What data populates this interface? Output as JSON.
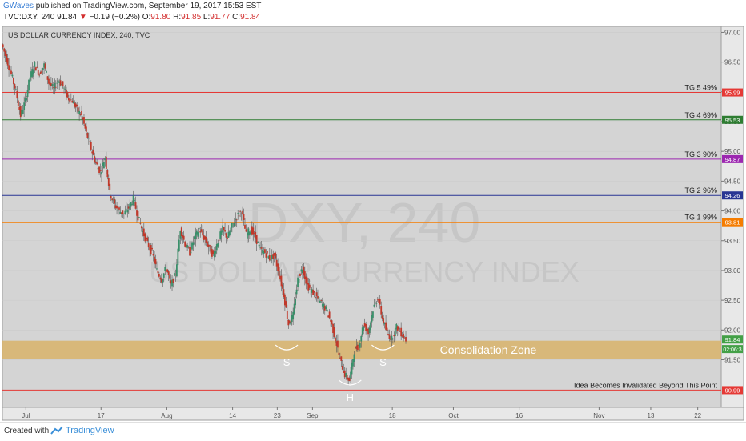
{
  "header": {
    "author": "GWaves",
    "published": "published on TradingView.com, September 19, 2017 15:53 EST",
    "symbol": "TVC:DXY, 240",
    "last": "91.84",
    "change_arrow": "▼",
    "change": "−0.19 (−0.2%)",
    "o_label": "O:",
    "o_val": "91.80",
    "h_label": "H:",
    "h_val": "91.85",
    "l_label": "L:",
    "l_val": "91.77",
    "c_label": "C:",
    "c_val": "91.84"
  },
  "footer": {
    "created_with": "Created with",
    "brand": "TradingView"
  },
  "chart_data": {
    "type": "candlestick",
    "title": "US DOLLAR CURRENCY INDEX, 240, TVC",
    "watermark_line1": "DXY, 240",
    "watermark_line2": "US DOLLAR CURRENCY INDEX",
    "ylim": [
      90.7,
      97.1
    ],
    "y_ticks": [
      "97.00",
      "96.50",
      "96.00",
      "95.50",
      "95.00",
      "94.50",
      "94.00",
      "93.50",
      "93.00",
      "92.50",
      "92.00",
      "91.50"
    ],
    "x_ticks": [
      {
        "label": "Jul",
        "t": 5
      },
      {
        "label": "17",
        "t": 21
      },
      {
        "label": "Aug",
        "t": 35
      },
      {
        "label": "14",
        "t": 49
      },
      {
        "label": "23",
        "t": 58.5
      },
      {
        "label": "Sep",
        "t": 66
      },
      {
        "label": "18",
        "t": 83
      },
      {
        "label": "Oct",
        "t": 96
      },
      {
        "label": "16",
        "t": 110
      },
      {
        "label": "Nov",
        "t": 127
      },
      {
        "label": "13",
        "t": 138
      },
      {
        "label": "22",
        "t": 148
      }
    ],
    "horizontal_levels": [
      {
        "label": "TG 5 49%",
        "value": 95.99,
        "tag": "95.99",
        "color": "#e53935"
      },
      {
        "label": "TG 4 69%",
        "value": 95.53,
        "tag": "95.53",
        "color": "#2e7d32"
      },
      {
        "label": "TG 3 90%",
        "value": 94.87,
        "tag": "94.87",
        "color": "#9c27b0"
      },
      {
        "label": "TG 2 96%",
        "value": 94.26,
        "tag": "94.26",
        "color": "#283593"
      },
      {
        "label": "TG 1 99%",
        "value": 93.81,
        "tag": "93.81",
        "color": "#f57c00"
      },
      {
        "label": "Idea Becomes Invalidated Beyond This Point",
        "value": 90.99,
        "tag": "90.99",
        "color": "#e53935"
      }
    ],
    "last_price": {
      "tag": "91.84",
      "value": 91.84,
      "color": "#43a047"
    },
    "countdown": {
      "text": "02:06:3",
      "value": 91.68
    },
    "consolidation_zone": {
      "label": "Consolidation Zone",
      "low": 91.52,
      "high": 91.82,
      "color": "#d8b36a"
    },
    "pattern_labels": [
      {
        "text": "S",
        "t": 60.5,
        "v": 91.64
      },
      {
        "text": "H",
        "t": 74,
        "v": 91.05
      },
      {
        "text": "S",
        "t": 81,
        "v": 91.64
      }
    ],
    "price_path": [
      [
        0,
        96.8
      ],
      [
        1,
        96.55
      ],
      [
        2,
        96.3
      ],
      [
        3,
        96.0
      ],
      [
        4,
        95.6
      ],
      [
        5,
        95.85
      ],
      [
        6,
        96.25
      ],
      [
        7,
        96.45
      ],
      [
        8,
        96.3
      ],
      [
        9,
        96.45
      ],
      [
        10,
        96.15
      ],
      [
        11,
        96.05
      ],
      [
        12,
        96.2
      ],
      [
        13,
        96.1
      ],
      [
        14,
        95.9
      ],
      [
        15,
        95.85
      ],
      [
        16,
        95.7
      ],
      [
        17,
        95.6
      ],
      [
        18,
        95.3
      ],
      [
        19,
        95.05
      ],
      [
        20,
        94.8
      ],
      [
        21,
        94.65
      ],
      [
        22,
        94.9
      ],
      [
        23,
        94.3
      ],
      [
        24,
        94.1
      ],
      [
        25,
        94.0
      ],
      [
        26,
        93.95
      ],
      [
        27,
        94.05
      ],
      [
        28,
        94.2
      ],
      [
        29,
        93.9
      ],
      [
        30,
        93.65
      ],
      [
        31,
        93.45
      ],
      [
        32,
        93.3
      ],
      [
        33,
        93.0
      ],
      [
        34,
        92.85
      ],
      [
        35,
        93.05
      ],
      [
        36,
        92.75
      ],
      [
        37,
        92.95
      ],
      [
        38,
        93.7
      ],
      [
        39,
        93.45
      ],
      [
        40,
        93.3
      ],
      [
        41,
        93.55
      ],
      [
        42,
        93.7
      ],
      [
        43,
        93.55
      ],
      [
        44,
        93.4
      ],
      [
        45,
        93.25
      ],
      [
        46,
        93.5
      ],
      [
        47,
        93.7
      ],
      [
        48,
        93.55
      ],
      [
        49,
        93.75
      ],
      [
        50,
        93.9
      ],
      [
        51,
        94.0
      ],
      [
        52,
        93.6
      ],
      [
        53,
        93.7
      ],
      [
        54,
        93.55
      ],
      [
        55,
        93.35
      ],
      [
        56,
        93.3
      ],
      [
        57,
        93.2
      ],
      [
        58,
        93.25
      ],
      [
        59,
        92.95
      ],
      [
        60,
        92.6
      ],
      [
        61,
        92.1
      ],
      [
        62,
        92.25
      ],
      [
        63,
        92.85
      ],
      [
        64,
        93.05
      ],
      [
        65,
        92.75
      ],
      [
        66,
        92.65
      ],
      [
        67,
        92.55
      ],
      [
        68,
        92.45
      ],
      [
        69,
        92.35
      ],
      [
        70,
        92.15
      ],
      [
        71,
        91.85
      ],
      [
        72,
        91.5
      ],
      [
        73,
        91.25
      ],
      [
        74,
        91.15
      ],
      [
        75,
        91.65
      ],
      [
        76,
        91.75
      ],
      [
        77,
        92.1
      ],
      [
        78,
        91.95
      ],
      [
        79,
        92.35
      ],
      [
        80,
        92.55
      ],
      [
        81,
        92.2
      ],
      [
        82,
        91.95
      ],
      [
        83,
        91.85
      ],
      [
        84,
        92.05
      ],
      [
        85,
        91.95
      ],
      [
        86,
        91.84
      ]
    ]
  }
}
